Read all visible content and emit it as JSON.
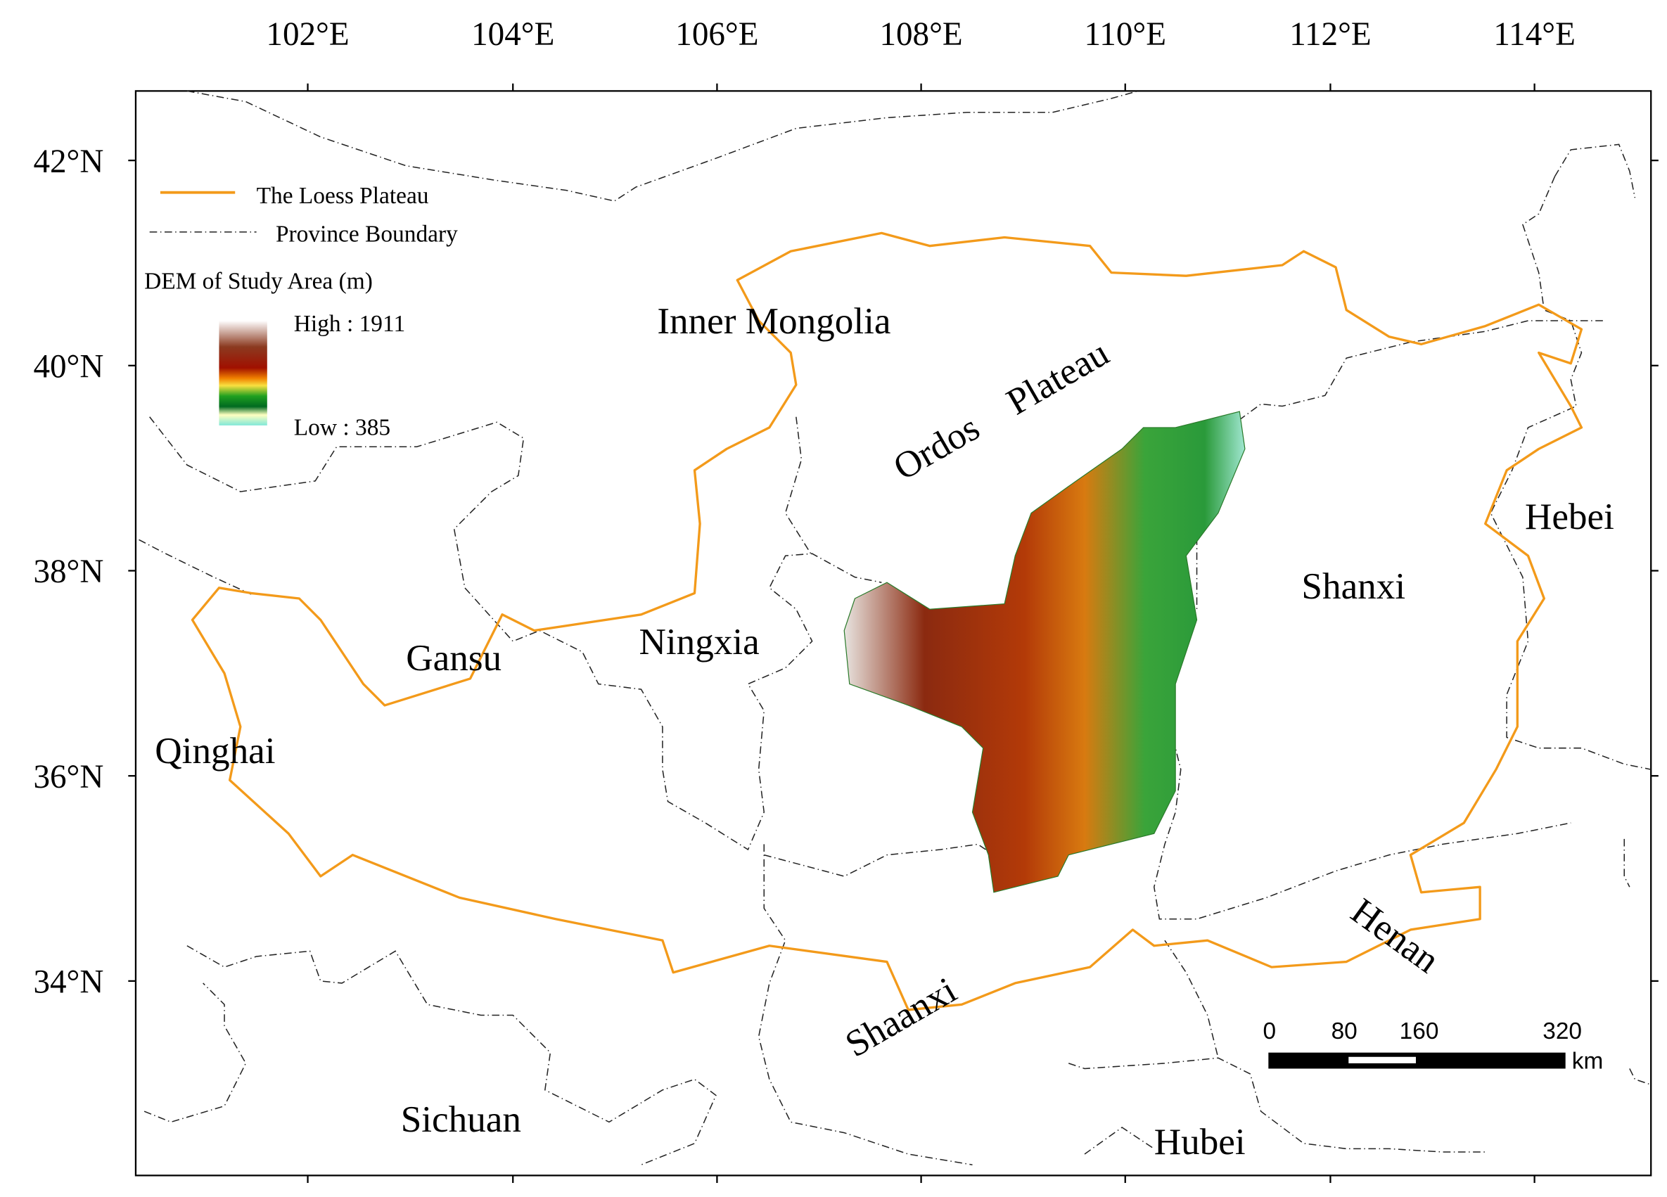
{
  "axes": {
    "longitude_labels": [
      "102°E",
      "104°E",
      "106°E",
      "108°E",
      "110°E",
      "112°E",
      "114°E"
    ],
    "latitude_labels": [
      "42°N",
      "40°N",
      "38°N",
      "36°N",
      "34°N"
    ]
  },
  "legend": {
    "loess_plateau": "The Loess Plateau",
    "province_boundary": "Province Boundary",
    "dem_title": "DEM of Study Area (m)",
    "high": "High : 1911",
    "low": "Low : 385"
  },
  "regions": [
    "Inner Mongolia",
    "Ordos Plateau",
    "Hebei",
    "Shanxi",
    "Ningxia",
    "Gansu",
    "Qinghai",
    "Shaanxi",
    "Henan",
    "Sichuan",
    "Hubei"
  ],
  "scale_bar": {
    "labels": [
      "0",
      "80",
      "160",
      "320"
    ],
    "unit": "km"
  }
}
